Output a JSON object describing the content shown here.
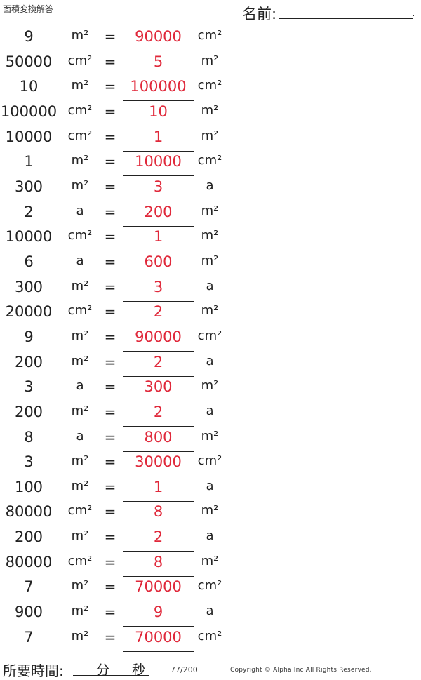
{
  "header": {
    "title": "面積変換解答",
    "name_label": "名前:",
    "name_end": "."
  },
  "rows": [
    {
      "num": "9",
      "unit1": "m²",
      "eq": "=",
      "answer": "90000",
      "unit2": "cm²"
    },
    {
      "num": "50000",
      "unit1": "cm²",
      "eq": "=",
      "answer": "5",
      "unit2": "m²"
    },
    {
      "num": "10",
      "unit1": "m²",
      "eq": "=",
      "answer": "100000",
      "unit2": "cm²"
    },
    {
      "num": "100000",
      "unit1": "cm²",
      "eq": "=",
      "answer": "10",
      "unit2": "m²"
    },
    {
      "num": "10000",
      "unit1": "cm²",
      "eq": "=",
      "answer": "1",
      "unit2": "m²"
    },
    {
      "num": "1",
      "unit1": "m²",
      "eq": "=",
      "answer": "10000",
      "unit2": "cm²"
    },
    {
      "num": "300",
      "unit1": "m²",
      "eq": "=",
      "answer": "3",
      "unit2": "a"
    },
    {
      "num": "2",
      "unit1": "a",
      "eq": "=",
      "answer": "200",
      "unit2": "m²"
    },
    {
      "num": "10000",
      "unit1": "cm²",
      "eq": "=",
      "answer": "1",
      "unit2": "m²"
    },
    {
      "num": "6",
      "unit1": "a",
      "eq": "=",
      "answer": "600",
      "unit2": "m²"
    },
    {
      "num": "300",
      "unit1": "m²",
      "eq": "=",
      "answer": "3",
      "unit2": "a"
    },
    {
      "num": "20000",
      "unit1": "cm²",
      "eq": "=",
      "answer": "2",
      "unit2": "m²"
    },
    {
      "num": "9",
      "unit1": "m²",
      "eq": "=",
      "answer": "90000",
      "unit2": "cm²"
    },
    {
      "num": "200",
      "unit1": "m²",
      "eq": "=",
      "answer": "2",
      "unit2": "a"
    },
    {
      "num": "3",
      "unit1": "a",
      "eq": "=",
      "answer": "300",
      "unit2": "m²"
    },
    {
      "num": "200",
      "unit1": "m²",
      "eq": "=",
      "answer": "2",
      "unit2": "a"
    },
    {
      "num": "8",
      "unit1": "a",
      "eq": "=",
      "answer": "800",
      "unit2": "m²"
    },
    {
      "num": "3",
      "unit1": "m²",
      "eq": "=",
      "answer": "30000",
      "unit2": "cm²"
    },
    {
      "num": "100",
      "unit1": "m²",
      "eq": "=",
      "answer": "1",
      "unit2": "a"
    },
    {
      "num": "80000",
      "unit1": "cm²",
      "eq": "=",
      "answer": "8",
      "unit2": "m²"
    },
    {
      "num": "200",
      "unit1": "m²",
      "eq": "=",
      "answer": "2",
      "unit2": "a"
    },
    {
      "num": "80000",
      "unit1": "cm²",
      "eq": "=",
      "answer": "8",
      "unit2": "m²"
    },
    {
      "num": "7",
      "unit1": "m²",
      "eq": "=",
      "answer": "70000",
      "unit2": "cm²"
    },
    {
      "num": "900",
      "unit1": "m²",
      "eq": "=",
      "answer": "9",
      "unit2": "a"
    },
    {
      "num": "7",
      "unit1": "m²",
      "eq": "=",
      "answer": "70000",
      "unit2": "cm²"
    }
  ],
  "footer": {
    "time_label": "所要時間:",
    "minutes_label": "分",
    "seconds_label": "秒",
    "page": "77/200",
    "copyright": "Copyright © Alpha Inc All Rights Reserved."
  },
  "colors": {
    "answer": "#e0283a",
    "text": "#222222"
  }
}
